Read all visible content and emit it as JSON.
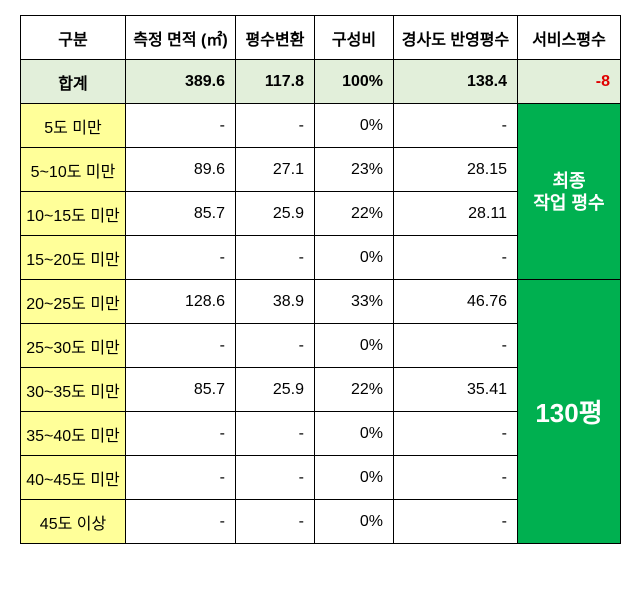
{
  "table": {
    "header": [
      "구분",
      "측정 면적 (㎡)",
      "평수변환",
      "구성비",
      "경사도 반영평수",
      "서비스평수"
    ],
    "total": [
      "합계",
      "389.6",
      "117.8",
      "100%",
      "138.4",
      "-8"
    ],
    "rows": [
      [
        "5도 미만",
        "-",
        "-",
        "0%",
        "-"
      ],
      [
        "5~10도 미만",
        "89.6",
        "27.1",
        "23%",
        "28.15"
      ],
      [
        "10~15도 미만",
        "85.7",
        "25.9",
        "22%",
        "28.11"
      ],
      [
        "15~20도 미만",
        "-",
        "-",
        "0%",
        "-"
      ],
      [
        "20~25도 미만",
        "128.6",
        "38.9",
        "33%",
        "46.76"
      ],
      [
        "25~30도 미만",
        "-",
        "-",
        "0%",
        "-"
      ],
      [
        "30~35도 미만",
        "85.7",
        "25.9",
        "22%",
        "35.41"
      ],
      [
        "35~40도 미만",
        "-",
        "-",
        "0%",
        "-"
      ],
      [
        "40~45도 미만",
        "-",
        "-",
        "0%",
        "-"
      ],
      [
        "45도 이상",
        "-",
        "-",
        "0%",
        "-"
      ]
    ],
    "final_label": [
      "최종",
      "작업 평수"
    ],
    "final_value": "130평"
  }
}
